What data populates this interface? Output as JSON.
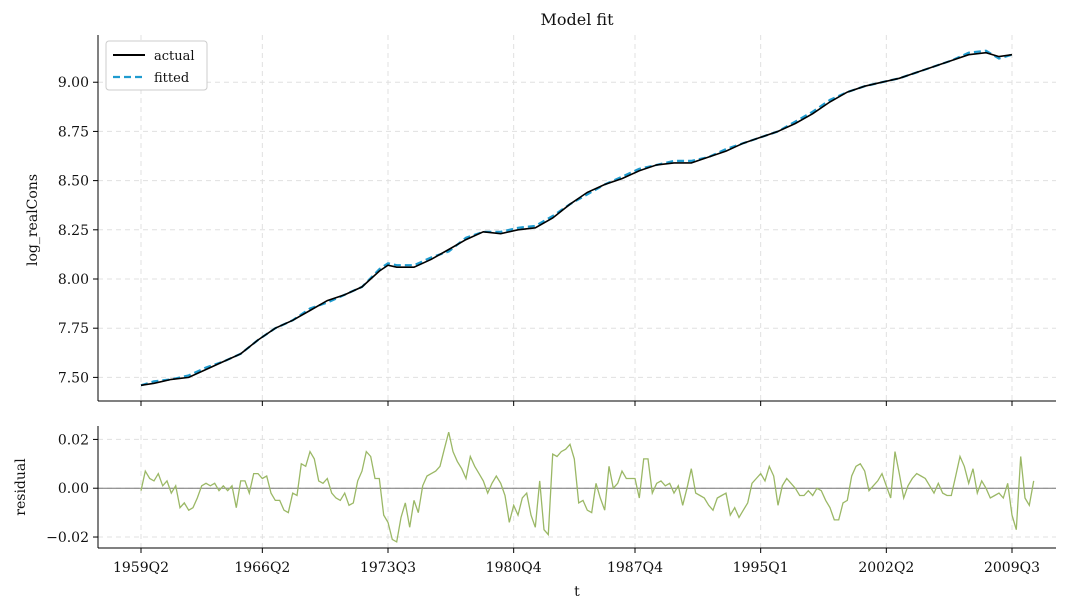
{
  "chart_data": [
    {
      "type": "line",
      "title": "Model fit",
      "xlabel": "",
      "ylabel": "log_realCons",
      "x_range": [
        1959.25,
        2009.5
      ],
      "ylim": [
        7.38,
        9.24
      ],
      "yticks": [
        "7.50",
        "7.75",
        "8.00",
        "8.25",
        "8.50",
        "8.75",
        "9.00"
      ],
      "grid": true,
      "legend_position": "top-left",
      "series": [
        {
          "name": "actual",
          "color": "#000000",
          "style": "solid",
          "points": [
            [
              1959.25,
              7.46
            ],
            [
              1960.0,
              7.47
            ],
            [
              1961.0,
              7.49
            ],
            [
              1962.0,
              7.5
            ],
            [
              1963.0,
              7.54
            ],
            [
              1964.0,
              7.58
            ],
            [
              1965.0,
              7.62
            ],
            [
              1966.0,
              7.69
            ],
            [
              1967.0,
              7.75
            ],
            [
              1968.0,
              7.79
            ],
            [
              1969.0,
              7.84
            ],
            [
              1970.0,
              7.89
            ],
            [
              1971.0,
              7.92
            ],
            [
              1972.0,
              7.96
            ],
            [
              1973.0,
              8.04
            ],
            [
              1973.5,
              8.07
            ],
            [
              1974.0,
              8.06
            ],
            [
              1975.0,
              8.06
            ],
            [
              1976.0,
              8.1
            ],
            [
              1977.0,
              8.15
            ],
            [
              1978.0,
              8.2
            ],
            [
              1979.0,
              8.24
            ],
            [
              1980.0,
              8.23
            ],
            [
              1981.0,
              8.25
            ],
            [
              1982.0,
              8.26
            ],
            [
              1983.0,
              8.31
            ],
            [
              1984.0,
              8.38
            ],
            [
              1985.0,
              8.44
            ],
            [
              1986.0,
              8.48
            ],
            [
              1987.0,
              8.51
            ],
            [
              1988.0,
              8.55
            ],
            [
              1989.0,
              8.58
            ],
            [
              1990.0,
              8.59
            ],
            [
              1991.0,
              8.59
            ],
            [
              1992.0,
              8.62
            ],
            [
              1993.0,
              8.65
            ],
            [
              1994.0,
              8.69
            ],
            [
              1995.0,
              8.72
            ],
            [
              1996.0,
              8.75
            ],
            [
              1997.0,
              8.79
            ],
            [
              1998.0,
              8.84
            ],
            [
              1999.0,
              8.9
            ],
            [
              2000.0,
              8.95
            ],
            [
              2001.0,
              8.98
            ],
            [
              2002.0,
              9.0
            ],
            [
              2003.0,
              9.02
            ],
            [
              2004.0,
              9.05
            ],
            [
              2005.0,
              9.08
            ],
            [
              2006.0,
              9.11
            ],
            [
              2007.0,
              9.14
            ],
            [
              2008.0,
              9.15
            ],
            [
              2008.75,
              9.13
            ],
            [
              2009.5,
              9.14
            ]
          ]
        },
        {
          "name": "fitted",
          "color": "#1f9bcf",
          "style": "dashed",
          "points": [
            [
              1959.25,
              7.46
            ],
            [
              1960.0,
              7.48
            ],
            [
              1961.0,
              7.49
            ],
            [
              1962.0,
              7.51
            ],
            [
              1963.0,
              7.55
            ],
            [
              1964.0,
              7.58
            ],
            [
              1965.0,
              7.62
            ],
            [
              1966.0,
              7.69
            ],
            [
              1967.0,
              7.75
            ],
            [
              1968.0,
              7.79
            ],
            [
              1969.0,
              7.85
            ],
            [
              1970.0,
              7.88
            ],
            [
              1971.0,
              7.92
            ],
            [
              1972.0,
              7.96
            ],
            [
              1973.0,
              8.05
            ],
            [
              1973.5,
              8.08
            ],
            [
              1974.0,
              8.07
            ],
            [
              1975.0,
              8.07
            ],
            [
              1976.0,
              8.11
            ],
            [
              1977.0,
              8.14
            ],
            [
              1978.0,
              8.21
            ],
            [
              1979.0,
              8.24
            ],
            [
              1980.0,
              8.24
            ],
            [
              1981.0,
              8.26
            ],
            [
              1982.0,
              8.27
            ],
            [
              1983.0,
              8.32
            ],
            [
              1984.0,
              8.38
            ],
            [
              1985.0,
              8.43
            ],
            [
              1986.0,
              8.48
            ],
            [
              1987.0,
              8.52
            ],
            [
              1988.0,
              8.56
            ],
            [
              1989.0,
              8.58
            ],
            [
              1990.0,
              8.6
            ],
            [
              1991.0,
              8.6
            ],
            [
              1992.0,
              8.62
            ],
            [
              1993.0,
              8.66
            ],
            [
              1994.0,
              8.69
            ],
            [
              1995.0,
              8.72
            ],
            [
              1996.0,
              8.75
            ],
            [
              1997.0,
              8.8
            ],
            [
              1998.0,
              8.85
            ],
            [
              1999.0,
              8.91
            ],
            [
              2000.0,
              8.95
            ],
            [
              2001.0,
              8.98
            ],
            [
              2002.0,
              9.0
            ],
            [
              2003.0,
              9.02
            ],
            [
              2004.0,
              9.05
            ],
            [
              2005.0,
              9.08
            ],
            [
              2006.0,
              9.11
            ],
            [
              2007.0,
              9.15
            ],
            [
              2008.0,
              9.16
            ],
            [
              2008.75,
              9.12
            ],
            [
              2009.5,
              9.14
            ]
          ]
        }
      ]
    },
    {
      "type": "line",
      "title": "",
      "xlabel": "t",
      "ylabel": "residual",
      "x_range": [
        1959.25,
        2009.5
      ],
      "ylim": [
        -0.0245,
        0.0255
      ],
      "yticks": [
        "0.02",
        "0.00",
        "−0.02"
      ],
      "yticks_values": [
        0.02,
        0.0,
        -0.02
      ],
      "xticks": [
        {
          "value": 1959.25,
          "label": "1959Q2"
        },
        {
          "value": 1966.25,
          "label": "1966Q2"
        },
        {
          "value": 1973.5,
          "label": "1973Q3"
        },
        {
          "value": 1980.75,
          "label": "1980Q4"
        },
        {
          "value": 1987.75,
          "label": "1987Q4"
        },
        {
          "value": 1995.0,
          "label": "1995Q1"
        },
        {
          "value": 2002.25,
          "label": "2002Q2"
        },
        {
          "value": 2009.5,
          "label": "2009Q3"
        }
      ],
      "grid": true,
      "zero_line": true,
      "series": [
        {
          "color": "#9bb866",
          "x_start": 1959.25,
          "x_step": 0.25,
          "values": [
            -0.001,
            0.007,
            0.004,
            0.003,
            0.006,
            0.001,
            0.003,
            -0.002,
            0.001,
            -0.008,
            -0.006,
            -0.009,
            -0.008,
            -0.004,
            0.001,
            0.002,
            0.001,
            0.002,
            -0.001,
            0.001,
            -0.001,
            0.001,
            -0.008,
            0.003,
            0.003,
            -0.002,
            0.006,
            0.006,
            0.004,
            0.005,
            -0.002,
            -0.005,
            -0.005,
            -0.009,
            -0.01,
            -0.002,
            -0.003,
            0.01,
            0.009,
            0.015,
            0.012,
            0.003,
            0.002,
            0.004,
            -0.002,
            -0.004,
            -0.005,
            -0.002,
            -0.007,
            -0.006,
            0.003,
            0.007,
            0.015,
            0.013,
            0.004,
            0.004,
            -0.011,
            -0.014,
            -0.021,
            -0.022,
            -0.012,
            -0.006,
            -0.016,
            -0.005,
            -0.01,
            0.001,
            0.005,
            0.006,
            0.007,
            0.009,
            0.016,
            0.023,
            0.015,
            0.011,
            0.008,
            0.004,
            0.013,
            0.009,
            0.006,
            0.003,
            -0.002,
            0.002,
            0.005,
            0.002,
            -0.003,
            -0.014,
            -0.007,
            -0.011,
            -0.004,
            -0.002,
            -0.011,
            -0.016,
            0.003,
            -0.017,
            -0.019,
            0.014,
            0.013,
            0.015,
            0.016,
            0.018,
            0.012,
            -0.006,
            -0.005,
            -0.009,
            -0.01,
            0.002,
            -0.004,
            -0.009,
            0.009,
            0.0,
            0.002,
            0.007,
            0.004,
            0.004,
            0.004,
            -0.004,
            0.012,
            0.012,
            -0.002,
            0.002,
            0.003,
            0.001,
            0.002,
            -0.002,
            0.001,
            -0.007,
            0.0,
            0.008,
            -0.002,
            -0.003,
            -0.004,
            -0.007,
            -0.009,
            -0.004,
            -0.003,
            -0.002,
            -0.011,
            -0.008,
            -0.012,
            -0.009,
            -0.006,
            0.002,
            0.004,
            0.006,
            0.003,
            0.009,
            0.005,
            -0.007,
            0.001,
            0.004,
            0.002,
            0.0,
            -0.003,
            -0.003,
            -0.001,
            -0.003,
            0.0,
            -0.001,
            -0.005,
            -0.008,
            -0.013,
            -0.013,
            -0.006,
            -0.005,
            0.005,
            0.009,
            0.01,
            0.007,
            -0.001,
            0.001,
            0.003,
            0.006,
            0.001,
            -0.004,
            0.015,
            0.006,
            -0.004,
            0.001,
            0.004,
            0.006,
            0.005,
            0.004,
            0.001,
            -0.002,
            0.002,
            -0.002,
            -0.003,
            -0.003,
            0.005,
            0.013,
            0.009,
            0.002,
            0.008,
            -0.002,
            0.003,
            0.0,
            -0.004,
            -0.003,
            -0.002,
            -0.004,
            0.002,
            -0.011,
            -0.017,
            0.013,
            -0.004,
            -0.007,
            0.003
          ]
        }
      ]
    }
  ]
}
